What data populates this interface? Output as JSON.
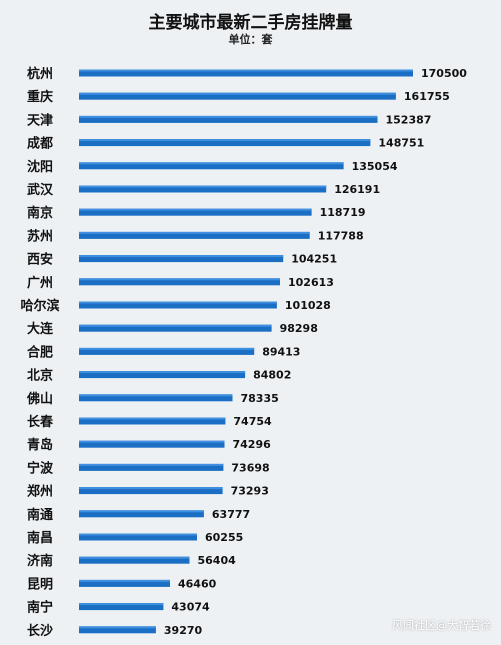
{
  "chart_data": {
    "type": "bar",
    "orientation": "horizontal",
    "title": "主要城市最新二手房挂牌量",
    "subtitle": "单位：套",
    "categories": [
      "杭州",
      "重庆",
      "天津",
      "成都",
      "沈阳",
      "武汉",
      "南京",
      "苏州",
      "西安",
      "广州",
      "哈尔滨",
      "大连",
      "合肥",
      "北京",
      "佛山",
      "长春",
      "青岛",
      "宁波",
      "郑州",
      "南通",
      "南昌",
      "济南",
      "昆明",
      "南宁",
      "长沙"
    ],
    "values": [
      170500,
      161755,
      152387,
      148751,
      135054,
      126191,
      118719,
      117788,
      104251,
      102613,
      101028,
      98298,
      89413,
      84802,
      78335,
      74754,
      74296,
      73698,
      73293,
      63777,
      60255,
      56404,
      46460,
      43074,
      39270
    ],
    "xlim": [
      0,
      170500
    ],
    "grid": false,
    "legend": "none",
    "colors": {
      "bar": "#1a6fc4",
      "bar_highlight": "#3f8fe0",
      "text": "#111111"
    }
  },
  "watermark": "风闻社区@大智若徐"
}
